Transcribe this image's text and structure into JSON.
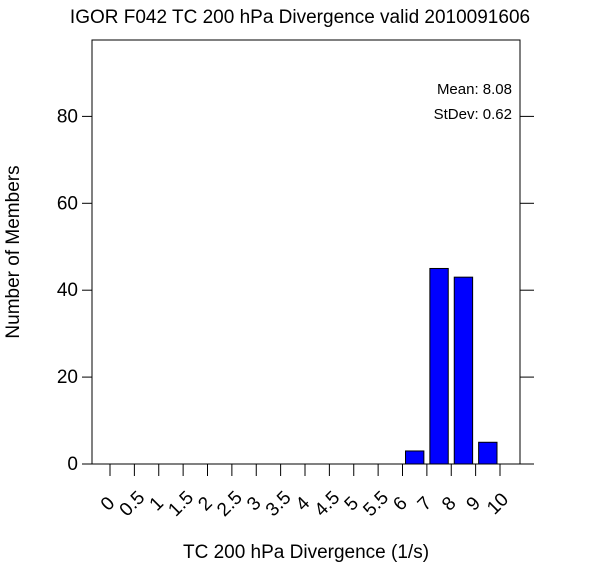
{
  "chart_data": {
    "type": "bar",
    "title": "IGOR F042 TC 200 hPa Divergence valid 2010091606",
    "xlabel": "TC 200 hPa Divergence (1/s)",
    "ylabel": "Number of Members",
    "x_tick_labels": [
      "0",
      "0.5",
      "1",
      "1.5",
      "2",
      "2.5",
      "3",
      "3.5",
      "4",
      "4.5",
      "5",
      "5.5",
      "6",
      "7",
      "8",
      "9",
      "10"
    ],
    "y_ticks": [
      0,
      20,
      40,
      60,
      80
    ],
    "ylim": [
      0,
      100
    ],
    "bin_count": 17,
    "bars": [
      {
        "bin": "6-7",
        "bin_index": 12,
        "value": 3
      },
      {
        "bin": "7-8",
        "bin_index": 13,
        "value": 45
      },
      {
        "bin": "8-9",
        "bin_index": 14,
        "value": 43
      },
      {
        "bin": "9-10",
        "bin_index": 15,
        "value": 5
      }
    ],
    "bar_color": "#0000ff",
    "stats": {
      "mean_label": "Mean: 8.08",
      "stdev_label": "StDev: 0.62"
    },
    "grid": false,
    "legend": "none"
  }
}
